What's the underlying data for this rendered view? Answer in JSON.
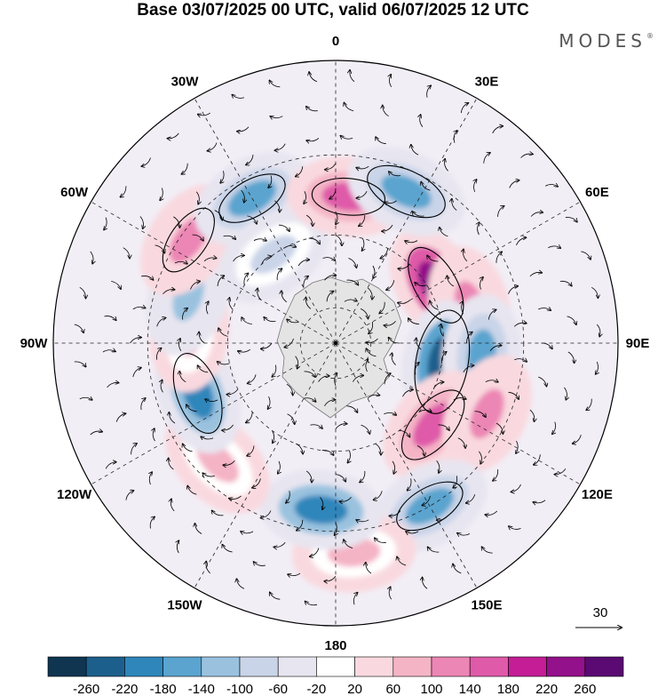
{
  "title": "Base 03/07/2025 00 UTC, valid 06/07/2025 12 UTC",
  "brand": "MODES",
  "brand_mark": "®",
  "longitude_labels": [
    {
      "text": "0",
      "lon": 0
    },
    {
      "text": "30E",
      "lon": 30
    },
    {
      "text": "60E",
      "lon": 60
    },
    {
      "text": "90E",
      "lon": 90
    },
    {
      "text": "120E",
      "lon": 120
    },
    {
      "text": "150E",
      "lon": 150
    },
    {
      "text": "180",
      "lon": 180
    },
    {
      "text": "150W",
      "lon": -150
    },
    {
      "text": "120W",
      "lon": -120
    },
    {
      "text": "90W",
      "lon": -90
    },
    {
      "text": "60W",
      "lon": -60
    },
    {
      "text": "30W",
      "lon": -30
    }
  ],
  "vector_reference": {
    "label": "30"
  },
  "colorbar": {
    "colors": [
      "#0f3551",
      "#1d5f8c",
      "#2f86bb",
      "#5aa4cf",
      "#9ac2df",
      "#c9d4e8",
      "#e7e5f0",
      "#ffffff",
      "#f9d9df",
      "#f4b4c6",
      "#ec86b4",
      "#df5aa8",
      "#c41d96",
      "#93118a",
      "#5a0a72"
    ],
    "tick_labels": [
      "-260",
      "-220",
      "-180",
      "-140",
      "-100",
      "-60",
      "-20",
      "20",
      "60",
      "100",
      "140",
      "180",
      "220",
      "260"
    ]
  },
  "anomaly_centers": [
    {
      "kind": "positive",
      "level": 13,
      "lat": -58,
      "lon": 60
    },
    {
      "kind": "positive",
      "level": 10,
      "lat": -52,
      "lon": 75
    },
    {
      "kind": "negative",
      "level": 1,
      "lat": -60,
      "lon": 100
    },
    {
      "kind": "negative",
      "level": 3,
      "lat": -50,
      "lon": 95
    },
    {
      "kind": "positive",
      "level": 11,
      "lat": -55,
      "lon": 130
    },
    {
      "kind": "positive",
      "level": 10,
      "lat": -45,
      "lon": 115
    },
    {
      "kind": "negative",
      "level": 3,
      "lat": -40,
      "lon": 150
    },
    {
      "kind": "positive",
      "level": 9,
      "lat": -35,
      "lon": 175
    },
    {
      "kind": "negative",
      "level": 2,
      "lat": -45,
      "lon": -175
    },
    {
      "kind": "positive",
      "level": 9,
      "lat": -45,
      "lon": -135
    },
    {
      "kind": "negative",
      "level": 2,
      "lat": -50,
      "lon": -110
    },
    {
      "kind": "positive",
      "level": 9,
      "lat": -50,
      "lon": -85
    },
    {
      "kind": "negative",
      "level": 4,
      "lat": -48,
      "lon": -72
    },
    {
      "kind": "positive",
      "level": 10,
      "lat": -42,
      "lon": -55
    },
    {
      "kind": "negative",
      "level": 3,
      "lat": -45,
      "lon": -30
    },
    {
      "kind": "negative",
      "level": 5,
      "lat": -60,
      "lon": -35
    },
    {
      "kind": "positive",
      "level": 11,
      "lat": -50,
      "lon": 5
    },
    {
      "kind": "negative",
      "level": 3,
      "lat": -45,
      "lon": 25
    }
  ],
  "contour_lines": [
    {
      "lat": -58,
      "lon": 60,
      "radius_deg": 8
    },
    {
      "lat": -60,
      "lon": 100,
      "radius_deg": 10
    },
    {
      "lat": -55,
      "lon": 130,
      "radius_deg": 8
    },
    {
      "lat": -40,
      "lon": 150,
      "radius_deg": 7
    },
    {
      "lat": -50,
      "lon": -110,
      "radius_deg": 8
    },
    {
      "lat": -42,
      "lon": -55,
      "radius_deg": 7
    },
    {
      "lat": -45,
      "lon": -30,
      "radius_deg": 7
    },
    {
      "lat": -45,
      "lon": 25,
      "radius_deg": 8
    },
    {
      "lat": -50,
      "lon": 5,
      "radius_deg": 7
    }
  ]
}
